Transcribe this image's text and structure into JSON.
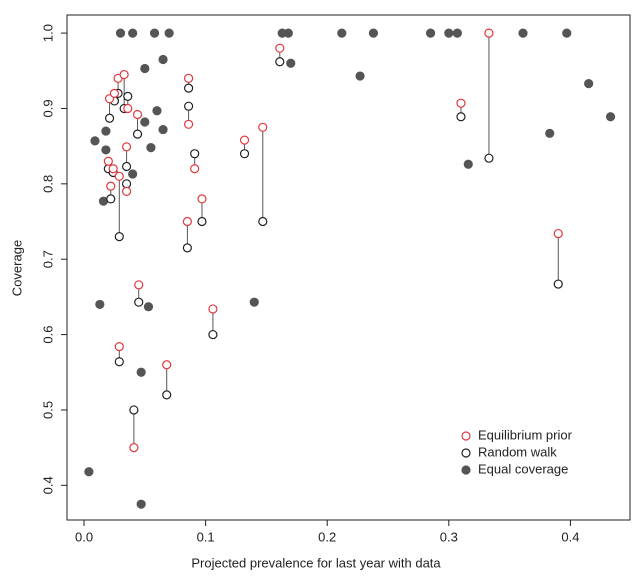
{
  "chart_data": {
    "type": "scatter",
    "x_label": "Projected prevalence for last year with data",
    "y_label": "Coverage",
    "xlim": [
      -0.014,
      0.449
    ],
    "ylim": [
      0.354,
      1.024
    ],
    "xticks": [
      {
        "value": 0,
        "label": "0.0"
      },
      0.1,
      0.2,
      0.3,
      0.4
    ],
    "yticks": [
      0.4,
      0.5,
      0.6,
      0.7,
      0.8,
      0.9,
      {
        "value": 1,
        "label": "1.0"
      }
    ],
    "legend": "bottom-right",
    "series": [
      {
        "name": "Equilibrium prior",
        "color": "#e0393e",
        "filled": false,
        "x": [
          0.041,
          0.029,
          0.068,
          0.045,
          0.106,
          0.029,
          0.035,
          0.035,
          0.085,
          0.097,
          0.091,
          0.086,
          0.086,
          0.132,
          0.147,
          0.161,
          0.333,
          0.31,
          0.39,
          0.044,
          0.02,
          0.021,
          0.022,
          0.025,
          0.028,
          0.033,
          0.036,
          0.024
        ],
        "values": [
          0.45,
          0.584,
          0.56,
          0.666,
          0.634,
          0.81,
          0.79,
          0.849,
          0.75,
          0.78,
          0.82,
          0.94,
          0.879,
          0.858,
          0.875,
          0.98,
          1.0,
          0.907,
          0.734,
          0.892,
          0.83,
          0.913,
          0.797,
          0.92,
          0.94,
          0.945,
          0.9,
          0.82
        ]
      },
      {
        "name": "Random walk",
        "color": "#222222",
        "filled": false,
        "x": [
          0.041,
          0.029,
          0.068,
          0.045,
          0.106,
          0.029,
          0.035,
          0.035,
          0.085,
          0.097,
          0.091,
          0.086,
          0.086,
          0.132,
          0.147,
          0.161,
          0.333,
          0.31,
          0.39,
          0.044,
          0.02,
          0.021,
          0.022,
          0.025,
          0.028,
          0.033,
          0.036,
          0.024
        ],
        "values": [
          0.5,
          0.564,
          0.52,
          0.643,
          0.6,
          0.73,
          0.8,
          0.823,
          0.715,
          0.75,
          0.84,
          0.927,
          0.903,
          0.84,
          0.75,
          0.962,
          0.834,
          0.889,
          0.667,
          0.866,
          0.82,
          0.887,
          0.78,
          0.91,
          0.92,
          0.9,
          0.916,
          0.815
        ]
      },
      {
        "name": "Equal coverage",
        "color": "#555555",
        "filled": true,
        "x": [
          0.004,
          0.013,
          0.009,
          0.016,
          0.018,
          0.018,
          0.025,
          0.03,
          0.04,
          0.04,
          0.047,
          0.047,
          0.05,
          0.05,
          0.053,
          0.055,
          0.058,
          0.06,
          0.065,
          0.065,
          0.07,
          0.14,
          0.163,
          0.168,
          0.17,
          0.212,
          0.227,
          0.238,
          0.285,
          0.3,
          0.307,
          0.316,
          0.361,
          0.383,
          0.397,
          0.415,
          0.433
        ],
        "values": [
          0.418,
          0.64,
          0.857,
          0.777,
          0.87,
          0.845,
          0.91,
          1.0,
          1.0,
          0.813,
          0.375,
          0.55,
          0.882,
          0.953,
          0.637,
          0.848,
          1.0,
          0.897,
          0.965,
          0.872,
          1.0,
          0.643,
          1.0,
          1.0,
          0.96,
          1.0,
          0.943,
          1.0,
          1.0,
          1.0,
          1.0,
          0.826,
          1.0,
          0.867,
          1.0,
          0.933,
          0.889
        ]
      }
    ]
  }
}
